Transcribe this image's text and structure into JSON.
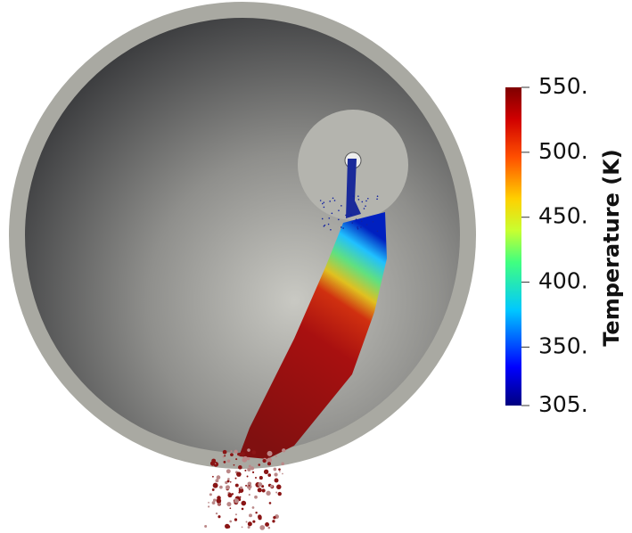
{
  "colorbar": {
    "title": "Temperature (K)",
    "range": [
      305,
      550
    ],
    "ticks": [
      {
        "value": 550,
        "label": "550."
      },
      {
        "value": 500,
        "label": "500."
      },
      {
        "value": 450,
        "label": "450."
      },
      {
        "value": 400,
        "label": "400."
      },
      {
        "value": 350,
        "label": "350."
      },
      {
        "value": 305,
        "label": "305."
      }
    ]
  }
}
